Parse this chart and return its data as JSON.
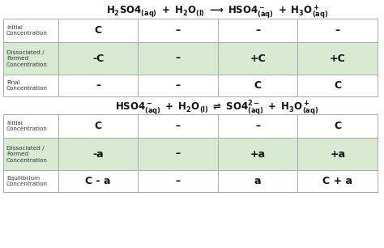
{
  "background_color": "#ffffff",
  "row_labels_1": [
    "Initial\nConcentration",
    "Dissociated /\nFormed\nConcentration",
    "Final\nConcentration"
  ],
  "row_labels_2": [
    "Initial\nConcentration",
    "Dissociated /\nFormed\nConcentration",
    "Equilibrium\nConcentration"
  ],
  "table1_data": [
    [
      "C",
      "–",
      "–",
      "–"
    ],
    [
      "-C",
      "–",
      "+C",
      "+C"
    ],
    [
      "–",
      "–",
      "C",
      "C"
    ]
  ],
  "table2_data": [
    [
      "C",
      "–",
      "–",
      "C"
    ],
    [
      "-a",
      "–",
      "+a",
      "+a"
    ],
    [
      "C - a",
      "–",
      "a",
      "C + a"
    ]
  ],
  "green_bg": "#d9ead3",
  "white_bg": "#ffffff",
  "border_color": "#aaaaaa",
  "arrow_color": "#4472c4",
  "header_color": "#111111",
  "label_color": "#333333",
  "data_color": "#111111"
}
